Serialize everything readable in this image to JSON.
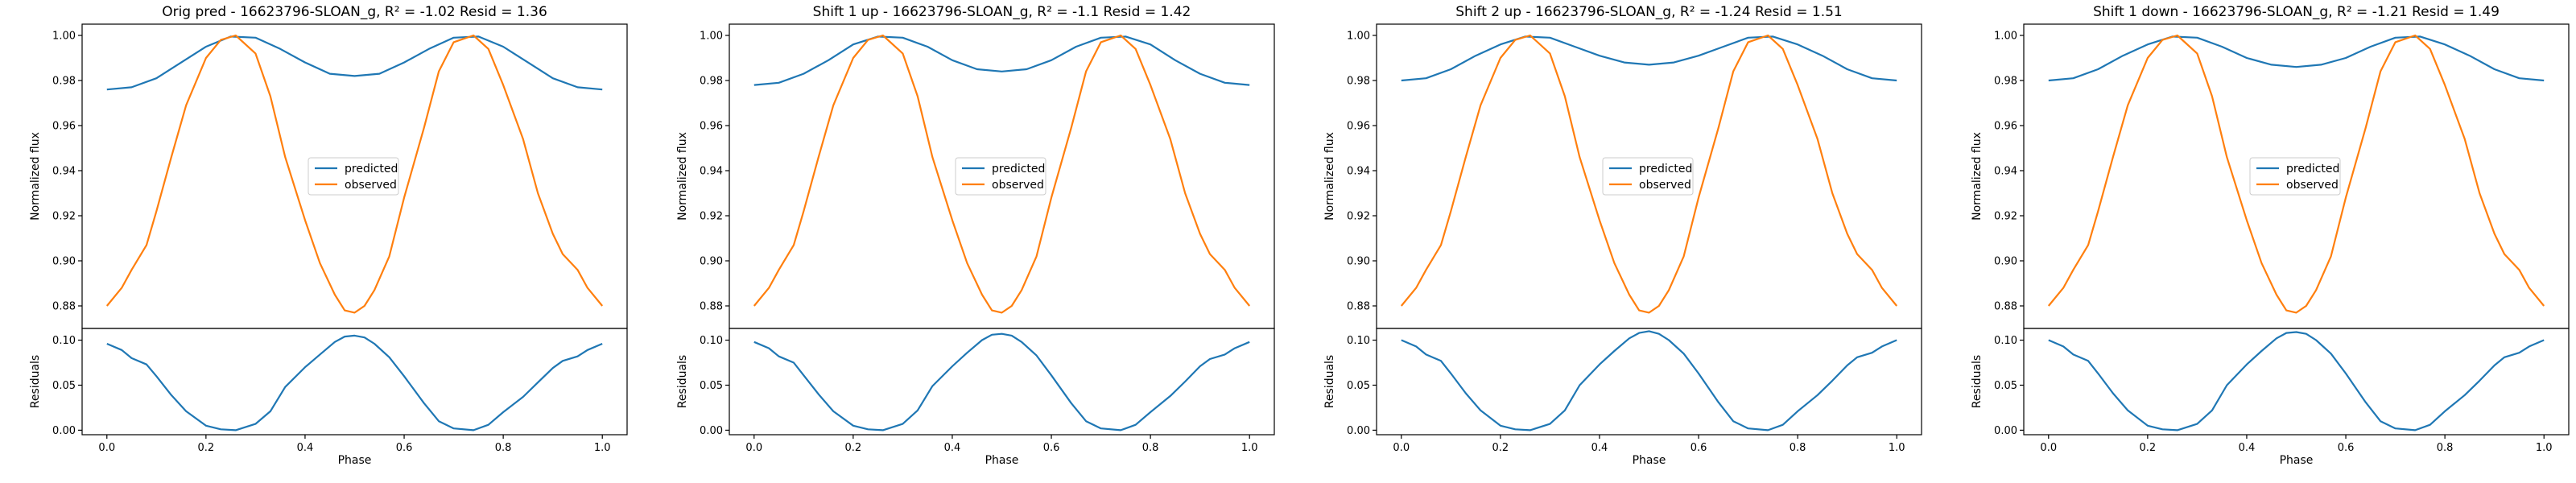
{
  "chart_data": [
    {
      "type": "line",
      "title": "Orig pred - 16623796-SLOAN_g, R² = -1.02 Resid = 1.36",
      "top": {
        "ylabel": "Normalized flux",
        "ylim": [
          0.87,
          1.005
        ],
        "yticks": [
          "0.88",
          "0.90",
          "0.92",
          "0.94",
          "0.96",
          "0.98",
          "1.00"
        ],
        "legend_position": "center",
        "series": [
          {
            "name": "predicted",
            "color": "#1f77b4",
            "x": [
              0.0,
              0.05,
              0.1,
              0.15,
              0.2,
              0.25,
              0.3,
              0.35,
              0.4,
              0.45,
              0.5,
              0.55,
              0.6,
              0.65,
              0.7,
              0.75,
              0.8,
              0.85,
              0.9,
              0.95,
              1.0
            ],
            "y": [
              0.976,
              0.977,
              0.981,
              0.988,
              0.995,
              0.9995,
              0.999,
              0.994,
              0.988,
              0.983,
              0.982,
              0.983,
              0.988,
              0.994,
              0.999,
              0.9995,
              0.995,
              0.988,
              0.981,
              0.977,
              0.976
            ]
          },
          {
            "name": "observed",
            "color": "#ff7f0e",
            "x": [
              0.0,
              0.03,
              0.05,
              0.08,
              0.1,
              0.13,
              0.16,
              0.2,
              0.23,
              0.26,
              0.3,
              0.33,
              0.36,
              0.4,
              0.43,
              0.46,
              0.48,
              0.5,
              0.52,
              0.54,
              0.57,
              0.6,
              0.64,
              0.67,
              0.7,
              0.74,
              0.77,
              0.8,
              0.84,
              0.87,
              0.9,
              0.92,
              0.95,
              0.97,
              1.0
            ],
            "y": [
              0.88,
              0.888,
              0.896,
              0.907,
              0.922,
              0.946,
              0.969,
              0.99,
              0.998,
              1.0,
              0.992,
              0.973,
              0.946,
              0.918,
              0.899,
              0.885,
              0.878,
              0.877,
              0.88,
              0.887,
              0.902,
              0.928,
              0.959,
              0.984,
              0.997,
              1.0,
              0.994,
              0.978,
              0.954,
              0.93,
              0.912,
              0.903,
              0.896,
              0.888,
              0.88
            ]
          }
        ]
      },
      "bottom": {
        "ylabel": "Residuals",
        "xlabel": "Phase",
        "ylim": [
          -0.005,
          0.113
        ],
        "yticks": [
          "0.00",
          "0.05",
          "0.10"
        ],
        "xticks": [
          "0.0",
          "0.2",
          "0.4",
          "0.6",
          "0.8",
          "1.0"
        ],
        "series": [
          {
            "name": "",
            "color": "#1f77b4",
            "x": [
              0.0,
              0.03,
              0.05,
              0.08,
              0.1,
              0.13,
              0.16,
              0.2,
              0.23,
              0.26,
              0.3,
              0.33,
              0.36,
              0.4,
              0.43,
              0.46,
              0.48,
              0.5,
              0.52,
              0.54,
              0.57,
              0.6,
              0.64,
              0.67,
              0.7,
              0.74,
              0.77,
              0.8,
              0.84,
              0.87,
              0.9,
              0.92,
              0.95,
              0.97,
              1.0
            ],
            "y": [
              0.096,
              0.089,
              0.08,
              0.073,
              0.06,
              0.039,
              0.021,
              0.005,
              0.001,
              0.0,
              0.007,
              0.021,
              0.048,
              0.07,
              0.084,
              0.098,
              0.104,
              0.105,
              0.103,
              0.096,
              0.081,
              0.06,
              0.03,
              0.01,
              0.002,
              0.0,
              0.006,
              0.02,
              0.037,
              0.053,
              0.069,
              0.077,
              0.082,
              0.089,
              0.096
            ]
          }
        ]
      }
    },
    {
      "type": "line",
      "title": "Shift 1 up - 16623796-SLOAN_g, R² = -1.1 Resid = 1.42",
      "top": {
        "ylabel": "Normalized flux",
        "ylim": [
          0.87,
          1.005
        ],
        "yticks": [
          "0.88",
          "0.90",
          "0.92",
          "0.94",
          "0.96",
          "0.98",
          "1.00"
        ],
        "legend_position": "center",
        "series": [
          {
            "name": "predicted",
            "color": "#1f77b4",
            "x": [
              0.0,
              0.05,
              0.1,
              0.15,
              0.2,
              0.25,
              0.3,
              0.35,
              0.4,
              0.45,
              0.5,
              0.55,
              0.6,
              0.65,
              0.7,
              0.75,
              0.8,
              0.85,
              0.9,
              0.95,
              1.0
            ],
            "y": [
              0.978,
              0.979,
              0.983,
              0.989,
              0.996,
              0.9995,
              0.999,
              0.995,
              0.989,
              0.985,
              0.984,
              0.985,
              0.989,
              0.995,
              0.999,
              0.9995,
              0.996,
              0.989,
              0.983,
              0.979,
              0.978
            ]
          },
          {
            "name": "observed",
            "color": "#ff7f0e",
            "x": [
              0.0,
              0.03,
              0.05,
              0.08,
              0.1,
              0.13,
              0.16,
              0.2,
              0.23,
              0.26,
              0.3,
              0.33,
              0.36,
              0.4,
              0.43,
              0.46,
              0.48,
              0.5,
              0.52,
              0.54,
              0.57,
              0.6,
              0.64,
              0.67,
              0.7,
              0.74,
              0.77,
              0.8,
              0.84,
              0.87,
              0.9,
              0.92,
              0.95,
              0.97,
              1.0
            ],
            "y": [
              0.88,
              0.888,
              0.896,
              0.907,
              0.922,
              0.946,
              0.969,
              0.99,
              0.998,
              1.0,
              0.992,
              0.973,
              0.946,
              0.918,
              0.899,
              0.885,
              0.878,
              0.877,
              0.88,
              0.887,
              0.902,
              0.928,
              0.959,
              0.984,
              0.997,
              1.0,
              0.994,
              0.978,
              0.954,
              0.93,
              0.912,
              0.903,
              0.896,
              0.888,
              0.88
            ]
          }
        ]
      },
      "bottom": {
        "ylabel": "Residuals",
        "xlabel": "Phase",
        "ylim": [
          -0.005,
          0.113
        ],
        "yticks": [
          "0.00",
          "0.05",
          "0.10"
        ],
        "xticks": [
          "0.0",
          "0.2",
          "0.4",
          "0.6",
          "0.8",
          "1.0"
        ],
        "series": [
          {
            "name": "",
            "color": "#1f77b4",
            "x": [
              0.0,
              0.03,
              0.05,
              0.08,
              0.1,
              0.13,
              0.16,
              0.2,
              0.23,
              0.26,
              0.3,
              0.33,
              0.36,
              0.4,
              0.43,
              0.46,
              0.48,
              0.5,
              0.52,
              0.54,
              0.57,
              0.6,
              0.64,
              0.67,
              0.7,
              0.74,
              0.77,
              0.8,
              0.84,
              0.87,
              0.9,
              0.92,
              0.95,
              0.97,
              1.0
            ],
            "y": [
              0.098,
              0.091,
              0.082,
              0.075,
              0.061,
              0.04,
              0.021,
              0.005,
              0.001,
              0.0,
              0.007,
              0.022,
              0.049,
              0.071,
              0.086,
              0.1,
              0.106,
              0.107,
              0.105,
              0.098,
              0.083,
              0.061,
              0.03,
              0.01,
              0.002,
              0.0,
              0.006,
              0.02,
              0.038,
              0.054,
              0.071,
              0.079,
              0.084,
              0.091,
              0.098
            ]
          }
        ]
      }
    },
    {
      "type": "line",
      "title": "Shift 2 up - 16623796-SLOAN_g, R² = -1.24 Resid = 1.51",
      "top": {
        "ylabel": "Normalized flux",
        "ylim": [
          0.87,
          1.005
        ],
        "yticks": [
          "0.88",
          "0.90",
          "0.92",
          "0.94",
          "0.96",
          "0.98",
          "1.00"
        ],
        "legend_position": "center",
        "series": [
          {
            "name": "predicted",
            "color": "#1f77b4",
            "x": [
              0.0,
              0.05,
              0.1,
              0.15,
              0.2,
              0.25,
              0.3,
              0.35,
              0.4,
              0.45,
              0.5,
              0.55,
              0.6,
              0.65,
              0.7,
              0.75,
              0.8,
              0.85,
              0.9,
              0.95,
              1.0
            ],
            "y": [
              0.98,
              0.981,
              0.985,
              0.991,
              0.996,
              0.9995,
              0.999,
              0.995,
              0.991,
              0.988,
              0.987,
              0.988,
              0.991,
              0.995,
              0.999,
              0.9995,
              0.996,
              0.991,
              0.985,
              0.981,
              0.98
            ]
          },
          {
            "name": "observed",
            "color": "#ff7f0e",
            "x": [
              0.0,
              0.03,
              0.05,
              0.08,
              0.1,
              0.13,
              0.16,
              0.2,
              0.23,
              0.26,
              0.3,
              0.33,
              0.36,
              0.4,
              0.43,
              0.46,
              0.48,
              0.5,
              0.52,
              0.54,
              0.57,
              0.6,
              0.64,
              0.67,
              0.7,
              0.74,
              0.77,
              0.8,
              0.84,
              0.87,
              0.9,
              0.92,
              0.95,
              0.97,
              1.0
            ],
            "y": [
              0.88,
              0.888,
              0.896,
              0.907,
              0.922,
              0.946,
              0.969,
              0.99,
              0.998,
              1.0,
              0.992,
              0.973,
              0.946,
              0.918,
              0.899,
              0.885,
              0.878,
              0.877,
              0.88,
              0.887,
              0.902,
              0.928,
              0.959,
              0.984,
              0.997,
              1.0,
              0.994,
              0.978,
              0.954,
              0.93,
              0.912,
              0.903,
              0.896,
              0.888,
              0.88
            ]
          }
        ]
      },
      "bottom": {
        "ylabel": "Residuals",
        "xlabel": "Phase",
        "ylim": [
          -0.005,
          0.113
        ],
        "yticks": [
          "0.00",
          "0.05",
          "0.10"
        ],
        "xticks": [
          "0.0",
          "0.2",
          "0.4",
          "0.6",
          "0.8",
          "1.0"
        ],
        "series": [
          {
            "name": "",
            "color": "#1f77b4",
            "x": [
              0.0,
              0.03,
              0.05,
              0.08,
              0.1,
              0.13,
              0.16,
              0.2,
              0.23,
              0.26,
              0.3,
              0.33,
              0.36,
              0.4,
              0.43,
              0.46,
              0.48,
              0.5,
              0.52,
              0.54,
              0.57,
              0.6,
              0.64,
              0.67,
              0.7,
              0.74,
              0.77,
              0.8,
              0.84,
              0.87,
              0.9,
              0.92,
              0.95,
              0.97,
              1.0
            ],
            "y": [
              0.1,
              0.093,
              0.084,
              0.077,
              0.063,
              0.041,
              0.022,
              0.005,
              0.001,
              0.0,
              0.007,
              0.022,
              0.05,
              0.073,
              0.088,
              0.102,
              0.108,
              0.11,
              0.107,
              0.1,
              0.085,
              0.063,
              0.031,
              0.01,
              0.002,
              0.0,
              0.006,
              0.021,
              0.039,
              0.055,
              0.072,
              0.081,
              0.086,
              0.093,
              0.1
            ]
          }
        ]
      }
    },
    {
      "type": "line",
      "title": "Shift 1 down - 16623796-SLOAN_g, R² = -1.21 Resid = 1.49",
      "top": {
        "ylabel": "Normalized flux",
        "ylim": [
          0.87,
          1.005
        ],
        "yticks": [
          "0.88",
          "0.90",
          "0.92",
          "0.94",
          "0.96",
          "0.98",
          "1.00"
        ],
        "legend_position": "center",
        "series": [
          {
            "name": "predicted",
            "color": "#1f77b4",
            "x": [
              0.0,
              0.05,
              0.1,
              0.15,
              0.2,
              0.25,
              0.3,
              0.35,
              0.4,
              0.45,
              0.5,
              0.55,
              0.6,
              0.65,
              0.7,
              0.75,
              0.8,
              0.85,
              0.9,
              0.95,
              1.0
            ],
            "y": [
              0.98,
              0.981,
              0.985,
              0.991,
              0.996,
              0.9995,
              0.999,
              0.995,
              0.99,
              0.987,
              0.986,
              0.987,
              0.99,
              0.995,
              0.999,
              0.9995,
              0.996,
              0.991,
              0.985,
              0.981,
              0.98
            ]
          },
          {
            "name": "observed",
            "color": "#ff7f0e",
            "x": [
              0.0,
              0.03,
              0.05,
              0.08,
              0.1,
              0.13,
              0.16,
              0.2,
              0.23,
              0.26,
              0.3,
              0.33,
              0.36,
              0.4,
              0.43,
              0.46,
              0.48,
              0.5,
              0.52,
              0.54,
              0.57,
              0.6,
              0.64,
              0.67,
              0.7,
              0.74,
              0.77,
              0.8,
              0.84,
              0.87,
              0.9,
              0.92,
              0.95,
              0.97,
              1.0
            ],
            "y": [
              0.88,
              0.888,
              0.896,
              0.907,
              0.922,
              0.946,
              0.969,
              0.99,
              0.998,
              1.0,
              0.992,
              0.973,
              0.946,
              0.918,
              0.899,
              0.885,
              0.878,
              0.877,
              0.88,
              0.887,
              0.902,
              0.928,
              0.959,
              0.984,
              0.997,
              1.0,
              0.994,
              0.978,
              0.954,
              0.93,
              0.912,
              0.903,
              0.896,
              0.888,
              0.88
            ]
          }
        ]
      },
      "bottom": {
        "ylabel": "Residuals",
        "xlabel": "Phase",
        "ylim": [
          -0.005,
          0.113
        ],
        "yticks": [
          "0.00",
          "0.05",
          "0.10"
        ],
        "xticks": [
          "0.0",
          "0.2",
          "0.4",
          "0.6",
          "0.8",
          "1.0"
        ],
        "series": [
          {
            "name": "",
            "color": "#1f77b4",
            "x": [
              0.0,
              0.03,
              0.05,
              0.08,
              0.1,
              0.13,
              0.16,
              0.2,
              0.23,
              0.26,
              0.3,
              0.33,
              0.36,
              0.4,
              0.43,
              0.46,
              0.48,
              0.5,
              0.52,
              0.54,
              0.57,
              0.6,
              0.64,
              0.67,
              0.7,
              0.74,
              0.77,
              0.8,
              0.84,
              0.87,
              0.9,
              0.92,
              0.95,
              0.97,
              1.0
            ],
            "y": [
              0.1,
              0.093,
              0.084,
              0.077,
              0.063,
              0.041,
              0.022,
              0.005,
              0.001,
              0.0,
              0.007,
              0.022,
              0.05,
              0.073,
              0.088,
              0.102,
              0.108,
              0.109,
              0.107,
              0.1,
              0.085,
              0.063,
              0.031,
              0.01,
              0.002,
              0.0,
              0.006,
              0.021,
              0.039,
              0.055,
              0.072,
              0.081,
              0.086,
              0.093,
              0.1
            ]
          }
        ]
      }
    }
  ]
}
